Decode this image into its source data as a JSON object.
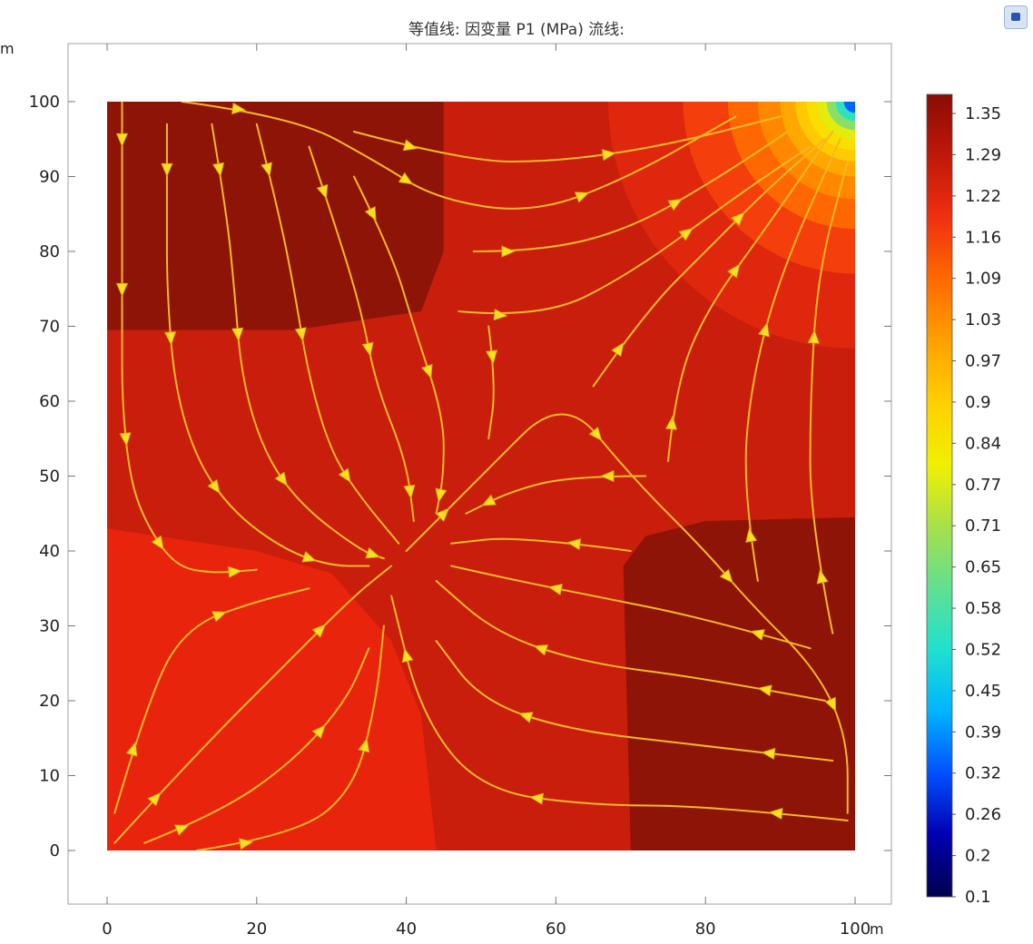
{
  "title": "等值线: 因变量 P1 (MPa)  流线:",
  "x_unit": "m",
  "y_unit": "m",
  "colors": {
    "level_1": "#8f1408",
    "level_2": "#c81e0b",
    "level_3": "#e8240d",
    "colorbar_stops": [
      "#00004d",
      "#0000b0",
      "#0050ff",
      "#00b4ff",
      "#20e0d0",
      "#60e090",
      "#a8e04a",
      "#f0f000",
      "#ffd000",
      "#ffa000",
      "#ff6a00",
      "#f03010",
      "#c01808",
      "#8a0c04"
    ]
  },
  "chart_data": {
    "type": "heatmap",
    "title": "等值线: 因变量 P1 (MPa)  流线:",
    "xlabel": "",
    "ylabel": "",
    "xlim": [
      0,
      100
    ],
    "ylim": [
      -7,
      105
    ],
    "xticks": [
      "0",
      "20",
      "40",
      "60",
      "80",
      "100"
    ],
    "yticks": [
      "0",
      "10",
      "20",
      "30",
      "40",
      "50",
      "60",
      "70",
      "80",
      "90",
      "100"
    ],
    "colorbar_ticks": [
      "1.35",
      "1.29",
      "1.22",
      "1.16",
      "1.09",
      "1.03",
      "0.97",
      "0.9",
      "0.84",
      "0.77",
      "0.71",
      "0.65",
      "0.58",
      "0.52",
      "0.45",
      "0.39",
      "0.32",
      "0.26",
      "0.2",
      "0.1"
    ],
    "colorbar_range": [
      0.1,
      1.38
    ],
    "regions": [
      {
        "name": "top-left",
        "value": 1.35,
        "polygon": [
          [
            0,
            100
          ],
          [
            45,
            100
          ],
          [
            45,
            80
          ],
          [
            42,
            72
          ],
          [
            25,
            69.5
          ],
          [
            0,
            69.5
          ]
        ]
      },
      {
        "name": "bottom-right",
        "value": 1.35,
        "polygon": [
          [
            100,
            0
          ],
          [
            70,
            0
          ],
          [
            69,
            38
          ],
          [
            72,
            42
          ],
          [
            80,
            44
          ],
          [
            100,
            44.5
          ]
        ]
      },
      {
        "name": "center",
        "value": 1.29,
        "polygon": [
          [
            0,
            69.5
          ],
          [
            25,
            69.5
          ],
          [
            42,
            72
          ],
          [
            45,
            80
          ],
          [
            45,
            100
          ],
          [
            66,
            100
          ],
          [
            68,
            90
          ],
          [
            72,
            80
          ],
          [
            80,
            70
          ],
          [
            92,
            65
          ],
          [
            100,
            64
          ],
          [
            100,
            44.5
          ],
          [
            80,
            44
          ],
          [
            72,
            42
          ],
          [
            69,
            38
          ],
          [
            70,
            0
          ],
          [
            44,
            0
          ],
          [
            42,
            18
          ],
          [
            38,
            28
          ],
          [
            30,
            37
          ],
          [
            20,
            40
          ],
          [
            0,
            43
          ]
        ]
      },
      {
        "name": "bottom-left",
        "value": 1.22,
        "polygon": [
          [
            0,
            0
          ],
          [
            44,
            0
          ],
          [
            42,
            18
          ],
          [
            38,
            28
          ],
          [
            30,
            37
          ],
          [
            20,
            40
          ],
          [
            0,
            43
          ]
        ]
      }
    ],
    "corner_source": {
      "x": 100,
      "y": 100,
      "rings": [
        {
          "r": 33,
          "value": 1.22
        },
        {
          "r": 23,
          "value": 1.16
        },
        {
          "r": 17,
          "value": 1.09
        },
        {
          "r": 13,
          "value": 1.03
        },
        {
          "r": 10,
          "value": 0.97
        },
        {
          "r": 8,
          "value": 0.9
        },
        {
          "r": 6.5,
          "value": 0.84
        },
        {
          "r": 5,
          "value": 0.77
        },
        {
          "r": 3.8,
          "value": 0.65
        },
        {
          "r": 2.6,
          "value": 0.52
        },
        {
          "r": 1.5,
          "value": 0.32
        }
      ]
    },
    "streamlines": [
      [
        [
          2,
          100
        ],
        [
          2,
          90
        ],
        [
          2,
          80
        ],
        [
          2,
          70
        ],
        [
          2,
          60
        ],
        [
          3,
          50
        ],
        [
          5,
          44
        ],
        [
          9,
          38
        ],
        [
          14,
          37
        ],
        [
          20,
          37.5
        ]
      ],
      [
        [
          8,
          97
        ],
        [
          8,
          85
        ],
        [
          8,
          75
        ],
        [
          9,
          62
        ],
        [
          12,
          52
        ],
        [
          17,
          45
        ],
        [
          24,
          40
        ],
        [
          30,
          38
        ],
        [
          35,
          38
        ]
      ],
      [
        [
          14,
          97
        ],
        [
          16,
          85
        ],
        [
          17,
          75
        ],
        [
          18,
          63
        ],
        [
          21,
          53
        ],
        [
          26,
          46
        ],
        [
          34,
          40
        ],
        [
          37,
          39
        ]
      ],
      [
        [
          20,
          97
        ],
        [
          23,
          85
        ],
        [
          25,
          75
        ],
        [
          27,
          63
        ],
        [
          30,
          53
        ],
        [
          34,
          47
        ],
        [
          39,
          41
        ]
      ],
      [
        [
          27,
          94
        ],
        [
          31,
          82
        ],
        [
          34,
          72
        ],
        [
          36,
          62
        ],
        [
          40,
          52
        ],
        [
          41,
          44
        ]
      ],
      [
        [
          33,
          90
        ],
        [
          38,
          80
        ],
        [
          41,
          70
        ],
        [
          45,
          58
        ],
        [
          45,
          50
        ],
        [
          44,
          45
        ]
      ],
      [
        [
          10,
          100
        ],
        [
          25,
          98
        ],
        [
          36,
          92
        ],
        [
          44,
          87
        ],
        [
          57,
          85
        ],
        [
          70,
          90
        ],
        [
          84,
          98
        ]
      ],
      [
        [
          33,
          96
        ],
        [
          48,
          92
        ],
        [
          60,
          92
        ],
        [
          74,
          94
        ],
        [
          90,
          98
        ]
      ],
      [
        [
          49,
          80
        ],
        [
          58,
          80
        ],
        [
          70,
          83
        ],
        [
          82,
          90
        ],
        [
          91,
          96
        ]
      ],
      [
        [
          47,
          72
        ],
        [
          58,
          71
        ],
        [
          70,
          77
        ],
        [
          85,
          88
        ],
        [
          94,
          94
        ]
      ],
      [
        [
          51,
          70
        ],
        [
          52,
          62
        ],
        [
          51,
          55
        ]
      ],
      [
        [
          65,
          62
        ],
        [
          72,
          72
        ],
        [
          80,
          80
        ],
        [
          89,
          89
        ],
        [
          96,
          95
        ]
      ],
      [
        [
          75,
          52
        ],
        [
          76,
          62
        ],
        [
          80,
          72
        ],
        [
          88,
          83
        ],
        [
          97,
          96
        ]
      ],
      [
        [
          87,
          36
        ],
        [
          85,
          48
        ],
        [
          86,
          62
        ],
        [
          90,
          77
        ],
        [
          98,
          95
        ]
      ],
      [
        [
          97,
          29
        ],
        [
          94,
          44
        ],
        [
          94,
          60
        ],
        [
          95,
          77
        ],
        [
          99,
          92
        ]
      ],
      [
        [
          40,
          40
        ],
        [
          50,
          50
        ],
        [
          61,
          61
        ],
        [
          70,
          50
        ],
        [
          80,
          40
        ],
        [
          86,
          33
        ],
        [
          95,
          24
        ],
        [
          99,
          15
        ],
        [
          99,
          5
        ]
      ],
      [
        [
          72,
          50
        ],
        [
          62,
          50
        ],
        [
          54,
          48
        ],
        [
          48,
          45
        ]
      ],
      [
        [
          70,
          40
        ],
        [
          55,
          42
        ],
        [
          46,
          41
        ]
      ],
      [
        [
          94,
          27
        ],
        [
          80,
          31
        ],
        [
          65,
          34
        ],
        [
          55,
          36
        ],
        [
          46,
          38
        ]
      ],
      [
        [
          96,
          20
        ],
        [
          80,
          23
        ],
        [
          64,
          25
        ],
        [
          52,
          29
        ],
        [
          44,
          36
        ]
      ],
      [
        [
          97,
          12
        ],
        [
          80,
          14
        ],
        [
          62,
          16
        ],
        [
          50,
          20
        ],
        [
          44,
          28
        ]
      ],
      [
        [
          99,
          4
        ],
        [
          80,
          6
        ],
        [
          65,
          6
        ],
        [
          50,
          8
        ],
        [
          42,
          18
        ],
        [
          38,
          34
        ]
      ],
      [
        [
          1,
          1
        ],
        [
          12,
          13
        ],
        [
          24,
          25
        ],
        [
          33,
          34
        ],
        [
          38,
          38
        ]
      ],
      [
        [
          1,
          5
        ],
        [
          6,
          22
        ],
        [
          11,
          30
        ],
        [
          19,
          33
        ],
        [
          27,
          35
        ]
      ],
      [
        [
          5,
          1
        ],
        [
          15,
          5
        ],
        [
          25,
          12
        ],
        [
          32,
          20
        ],
        [
          35,
          27
        ]
      ],
      [
        [
          12,
          0
        ],
        [
          25,
          2
        ],
        [
          33,
          8
        ],
        [
          36,
          20
        ],
        [
          37,
          30
        ]
      ]
    ]
  }
}
